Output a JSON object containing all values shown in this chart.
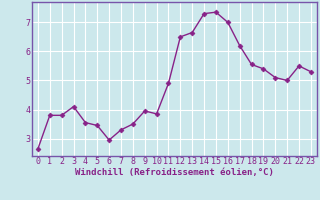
{
  "x": [
    0,
    1,
    2,
    3,
    4,
    5,
    6,
    7,
    8,
    9,
    10,
    11,
    12,
    13,
    14,
    15,
    16,
    17,
    18,
    19,
    20,
    21,
    22,
    23
  ],
  "y": [
    2.65,
    3.8,
    3.8,
    4.1,
    3.55,
    3.45,
    2.95,
    3.3,
    3.5,
    3.95,
    3.85,
    4.9,
    6.5,
    6.65,
    7.3,
    7.35,
    7.0,
    6.2,
    5.55,
    5.4,
    5.1,
    5.0,
    5.5,
    5.3
  ],
  "line_color": "#882288",
  "marker": "D",
  "markersize": 2.5,
  "linewidth": 1.0,
  "bg_color": "#cce8ec",
  "grid_color": "#ffffff",
  "xlabel": "Windchill (Refroidissement éolien,°C)",
  "xlabel_fontsize": 6.5,
  "tick_fontsize": 6.0,
  "ylim": [
    2.4,
    7.7
  ],
  "xlim": [
    -0.5,
    23.5
  ],
  "yticks": [
    3,
    4,
    5,
    6,
    7
  ],
  "xticks": [
    0,
    1,
    2,
    3,
    4,
    5,
    6,
    7,
    8,
    9,
    10,
    11,
    12,
    13,
    14,
    15,
    16,
    17,
    18,
    19,
    20,
    21,
    22,
    23
  ],
  "spine_color": "#7755aa"
}
